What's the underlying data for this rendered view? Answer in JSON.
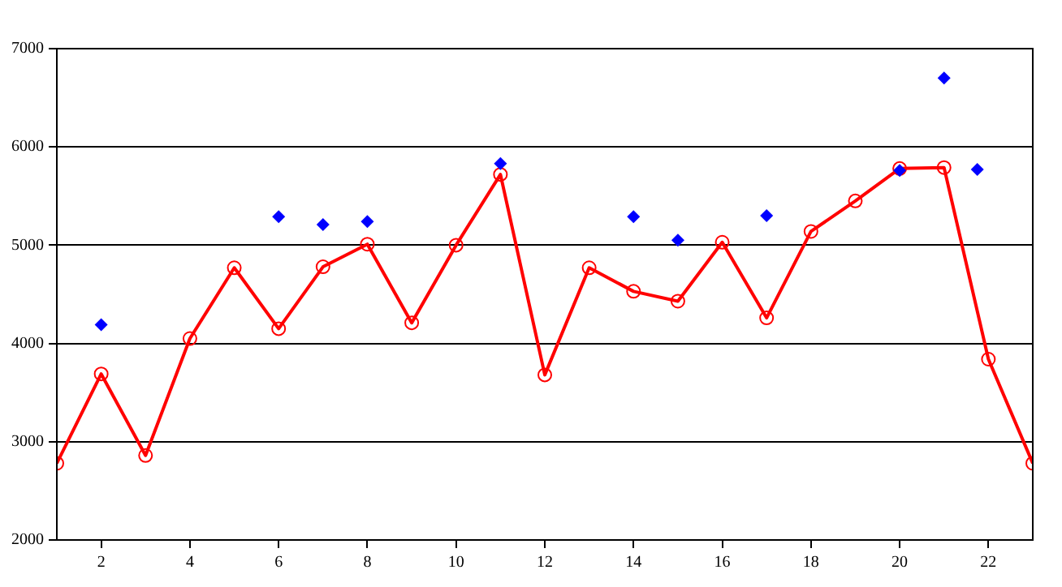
{
  "chart_data": {
    "type": "line",
    "xlim": [
      1,
      23
    ],
    "xticks": [
      2,
      4,
      6,
      8,
      10,
      12,
      14,
      16,
      18,
      20,
      22
    ],
    "ylim": [
      2000,
      7000
    ],
    "yticks": [
      2000,
      3000,
      4000,
      5000,
      6000,
      7000
    ],
    "grid": "y",
    "legend": false,
    "series": [
      {
        "type": "line",
        "color": "#ff0000",
        "marker": "circle",
        "x": [
          1,
          2,
          3,
          4,
          5,
          6,
          7,
          8,
          9,
          10,
          11,
          12,
          13,
          14,
          15,
          16,
          17,
          18,
          19,
          20,
          21,
          22,
          23
        ],
        "values": [
          2780,
          3690,
          2860,
          4050,
          4770,
          4150,
          4780,
          5010,
          4210,
          5000,
          5720,
          3680,
          4770,
          4530,
          4430,
          5030,
          4260,
          5140,
          5450,
          5780,
          5790,
          3840,
          2780
        ]
      },
      {
        "type": "scatter",
        "color": "#0000ff",
        "marker": "diamond",
        "x": [
          2,
          6,
          7,
          8,
          11,
          14,
          15,
          17,
          20,
          21,
          21.75
        ],
        "values": [
          4190,
          5290,
          5210,
          5240,
          5830,
          5290,
          5050,
          5300,
          5760,
          6700,
          5770
        ]
      }
    ]
  }
}
